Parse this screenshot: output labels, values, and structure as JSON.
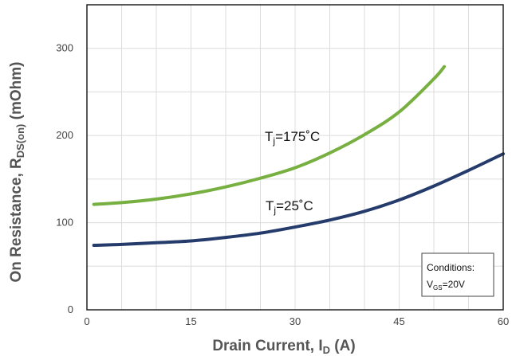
{
  "chart_data": {
    "type": "line",
    "title": "",
    "xlabel": {
      "main": "Drain Current, I",
      "sub": "D",
      "unit": " (A)"
    },
    "ylabel": {
      "main": "On Resistance, R",
      "sub": "DS(on)",
      "unit": " (mOhm)"
    },
    "xlim": [
      0,
      60
    ],
    "ylim": [
      0,
      350
    ],
    "xticks": [
      0,
      15,
      30,
      45,
      60
    ],
    "yticks": [
      0,
      100,
      200,
      300
    ],
    "grid": true,
    "series": [
      {
        "label_main": "T",
        "label_sub": "j",
        "label_value": "=175˚C",
        "color": "#77b041",
        "points": [
          [
            1,
            121
          ],
          [
            5,
            123
          ],
          [
            10,
            127
          ],
          [
            15,
            133
          ],
          [
            20,
            141
          ],
          [
            25,
            151
          ],
          [
            30,
            163
          ],
          [
            35,
            180
          ],
          [
            40,
            201
          ],
          [
            45,
            227
          ],
          [
            50,
            265
          ],
          [
            51.5,
            279
          ]
        ]
      },
      {
        "label_main": "T",
        "label_sub": "j",
        "label_value": "=25˚C",
        "color": "#243b6b",
        "points": [
          [
            1,
            74
          ],
          [
            5,
            75
          ],
          [
            10,
            77
          ],
          [
            15,
            79
          ],
          [
            20,
            83
          ],
          [
            25,
            88
          ],
          [
            30,
            95
          ],
          [
            35,
            103
          ],
          [
            40,
            113
          ],
          [
            45,
            126
          ],
          [
            50,
            142
          ],
          [
            55,
            160
          ],
          [
            60,
            179
          ]
        ]
      }
    ],
    "annotation": {
      "title": "Conditions:",
      "line_main": "V",
      "line_sub": "GS",
      "line_value": "=20V"
    }
  }
}
